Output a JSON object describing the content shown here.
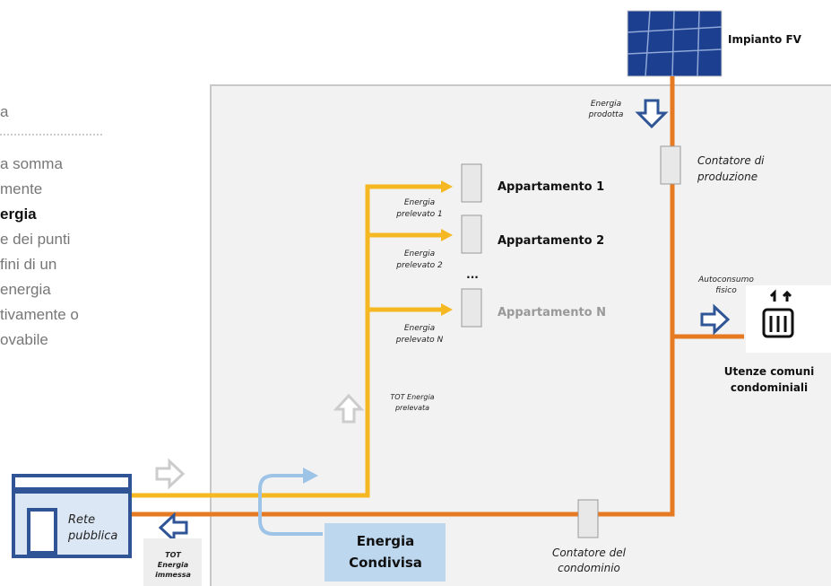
{
  "left_text": {
    "lines": [
      "a",
      "a somma",
      "mente",
      "ergia",
      "e dei punti",
      "fini di un",
      "energia",
      "tivamente o",
      "ovabile"
    ]
  },
  "solar": {
    "label": "Impianto FV"
  },
  "energia_prodotta": {
    "lines": [
      "Energia",
      "prodotta"
    ]
  },
  "contatore_produzione": {
    "lines": [
      "Contatore di",
      "produzione"
    ]
  },
  "apartments": [
    {
      "name": "Appartamento 1",
      "flow": [
        "Energia",
        "prelevato 1"
      ]
    },
    {
      "name": "Appartamento 2",
      "flow": [
        "Energia",
        "prelevato 2"
      ]
    },
    {
      "name": "Appartamento N",
      "flow": [
        "Energia",
        "prelevato N"
      ]
    }
  ],
  "ellipsis": "...",
  "tot_prelevata": {
    "lines": [
      "TOT Energia",
      "prelevata"
    ]
  },
  "autoconsumo": {
    "lines": [
      "Autoconsumo",
      "fisico"
    ]
  },
  "utenze": {
    "lines": [
      "Utenze comuni",
      "condominiali"
    ]
  },
  "rete": {
    "lines": [
      "Rete",
      "pubblica"
    ]
  },
  "tot_immessa": {
    "lines": [
      "TOT",
      "Energia",
      "immessa"
    ]
  },
  "condivisa": {
    "lines": [
      "Energia",
      "Condivisa"
    ]
  },
  "contatore_condominio": {
    "lines": [
      "Contatore del",
      "condominio"
    ]
  }
}
